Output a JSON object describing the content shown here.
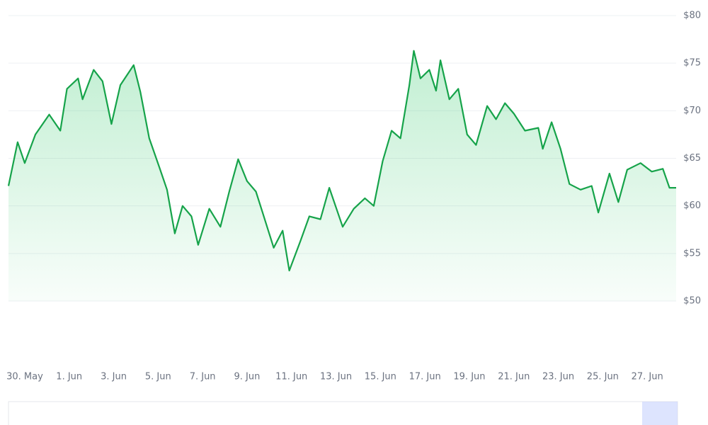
{
  "chart_data": {
    "type": "line",
    "series": [
      {
        "color": "#16a34a",
        "x": [
          -0.73,
          -0.32,
          0,
          0.48,
          1.1,
          1.6,
          1.9,
          2.4,
          2.6,
          3.1,
          3.5,
          3.9,
          4.3,
          4.9,
          5.2,
          5.6,
          6.05,
          6.4,
          6.75,
          7.1,
          7.5,
          7.8,
          8.3,
          8.8,
          9.2,
          9.6,
          10.0,
          10.4,
          10.7,
          11.2,
          11.6,
          11.9,
          12.4,
          12.8,
          13.3,
          13.7,
          14.3,
          14.8,
          15.3,
          15.7,
          16.1,
          16.5,
          16.9,
          17.3,
          17.5,
          17.8,
          18.2,
          18.5,
          18.7,
          19.1,
          19.5,
          19.9,
          20.3,
          20.8,
          21.2,
          21.6,
          22.0,
          22.5,
          23.1,
          23.3,
          23.7,
          24.1,
          24.5,
          25.0,
          25.5,
          25.8,
          26.3,
          26.7,
          27.1,
          27.7,
          28.2,
          28.7,
          29.0,
          29.3
        ],
        "values": [
          62.1,
          66.7,
          64.5,
          67.5,
          69.6,
          67.9,
          72.3,
          73.4,
          71.2,
          74.3,
          73.1,
          68.6,
          72.7,
          74.8,
          72.0,
          67.1,
          64.1,
          61.7,
          57.1,
          60.0,
          58.9,
          55.9,
          59.7,
          57.8,
          61.5,
          64.9,
          62.6,
          61.5,
          59.3,
          55.6,
          57.4,
          53.2,
          56.3,
          58.9,
          58.6,
          61.9,
          57.8,
          59.7,
          60.8,
          60.0,
          64.7,
          67.9,
          67.1,
          72.7,
          76.3,
          73.4,
          74.3,
          72.1,
          75.3,
          71.2,
          72.3,
          67.5,
          66.4,
          70.5,
          69.1,
          70.8,
          69.7,
          67.9,
          68.2,
          66.0,
          68.8,
          66.0,
          62.3,
          61.7,
          62.1,
          59.3,
          63.4,
          60.4,
          63.8,
          64.5,
          63.6,
          63.9,
          61.9,
          61.9
        ]
      }
    ],
    "xlim": [
      -0.73,
      29.3
    ],
    "xticks": [
      {
        "value": 0,
        "label": "30. May"
      },
      {
        "value": 2,
        "label": "1. Jun"
      },
      {
        "value": 4,
        "label": "3. Jun"
      },
      {
        "value": 6,
        "label": "5. Jun"
      },
      {
        "value": 8,
        "label": "7. Jun"
      },
      {
        "value": 10,
        "label": "9. Jun"
      },
      {
        "value": 12,
        "label": "11. Jun"
      },
      {
        "value": 14,
        "label": "13. Jun"
      },
      {
        "value": 16,
        "label": "15. Jun"
      },
      {
        "value": 18,
        "label": "17. Jun"
      },
      {
        "value": 20,
        "label": "19. Jun"
      },
      {
        "value": 22,
        "label": "21. Jun"
      },
      {
        "value": 24,
        "label": "23. Jun"
      },
      {
        "value": 26,
        "label": "25. Jun"
      },
      {
        "value": 28,
        "label": "27. Jun"
      }
    ],
    "ylim": [
      50,
      80
    ],
    "yticks": [
      {
        "value": 50,
        "label": "$50"
      },
      {
        "value": 55,
        "label": "$55"
      },
      {
        "value": 60,
        "label": "$60"
      },
      {
        "value": 65,
        "label": "$65"
      },
      {
        "value": 70,
        "label": "$70"
      },
      {
        "value": 75,
        "label": "$75"
      },
      {
        "value": 80,
        "label": "$80"
      }
    ],
    "grid": true
  }
}
